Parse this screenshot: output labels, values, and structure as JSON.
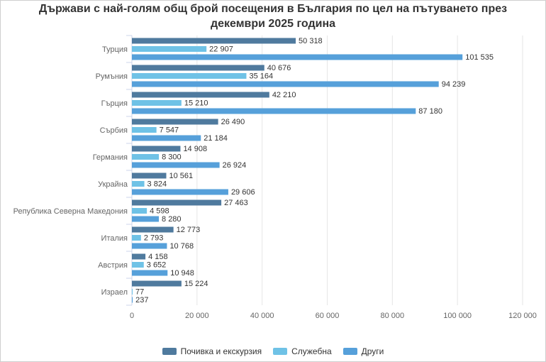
{
  "chart_data": {
    "type": "bar",
    "orientation": "horizontal",
    "title": "Държави с най-голям общ брой посещения в България по цел на пътуването през декември 2025 година",
    "categories": [
      "Турция",
      "Румъния",
      "Гърция",
      "Сърбия",
      "Германия",
      "Украйна",
      "Република Северна Македония",
      "Италия",
      "Австрия",
      "Израел"
    ],
    "series": [
      {
        "name": "Почивка и екскурзия",
        "color": "#4f7a9e",
        "values": [
          50318,
          40676,
          42210,
          26490,
          14908,
          10561,
          27463,
          12773,
          4158,
          15224
        ],
        "labels": [
          "50 318",
          "40 676",
          "42 210",
          "26 490",
          "14 908",
          "10 561",
          "27 463",
          "12 773",
          "4 158",
          "15 224"
        ]
      },
      {
        "name": "Служебна",
        "color": "#6fc2e6",
        "values": [
          22907,
          35164,
          15210,
          7547,
          8300,
          3824,
          4598,
          2793,
          3652,
          77
        ],
        "labels": [
          "22 907",
          "35 164",
          "15 210",
          "7 547",
          "8 300",
          "3 824",
          "4 598",
          "2 793",
          "3 652",
          "77"
        ]
      },
      {
        "name": "Други",
        "color": "#56a0da",
        "values": [
          101535,
          94239,
          87180,
          21184,
          26924,
          29606,
          8280,
          10768,
          10948,
          237
        ],
        "labels": [
          "101 535",
          "94 239",
          "87 180",
          "21 184",
          "26 924",
          "29 606",
          "8 280",
          "10 768",
          "10 948",
          "237"
        ]
      }
    ],
    "xlim": [
      0,
      120000
    ],
    "xticks": [
      0,
      20000,
      40000,
      60000,
      80000,
      100000,
      120000
    ],
    "xtick_labels": [
      "0",
      "20 000",
      "40 000",
      "60 000",
      "80 000",
      "100 000",
      "120 000"
    ],
    "grid": true,
    "legend_position": "bottom"
  }
}
